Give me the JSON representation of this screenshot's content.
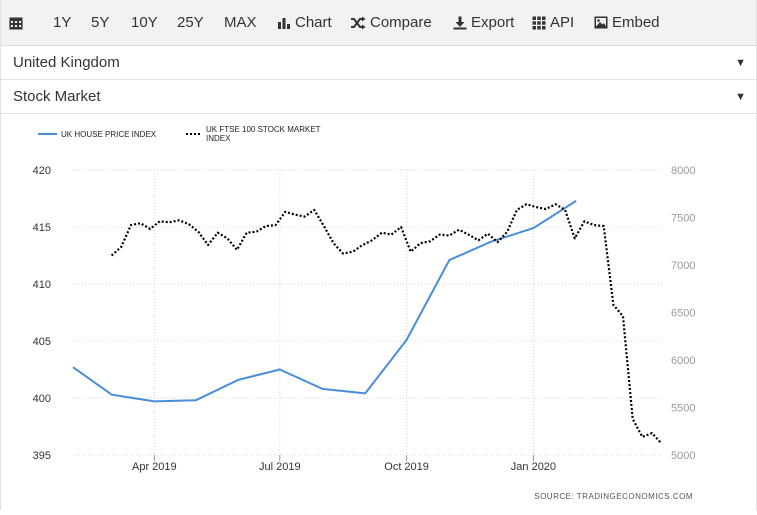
{
  "toolbar": {
    "items": [
      {
        "label": ""
      },
      {
        "label": "1Y"
      },
      {
        "label": "5Y"
      },
      {
        "label": "10Y"
      },
      {
        "label": "25Y"
      },
      {
        "label": "MAX"
      },
      {
        "label": "Chart"
      },
      {
        "label": "Compare"
      },
      {
        "label": "Export"
      },
      {
        "label": "API"
      },
      {
        "label": "Embed"
      }
    ]
  },
  "selectors": {
    "country": "United Kingdom",
    "indicator": "Stock Market"
  },
  "source": "SOURCE: TRADINGECONOMICS.COM",
  "colors": {
    "house": "#4a8ddc",
    "ftse": "#000000"
  },
  "chart_data": {
    "type": "line",
    "legend_placement": "top-left",
    "grid": true,
    "x_ticks": [
      "Apr 2019",
      "Jul 2019",
      "Oct 2019",
      "Jan 2020"
    ],
    "y_left": {
      "range": [
        395,
        420
      ],
      "ticks": [
        "420",
        "415",
        "410",
        "405",
        "400",
        "395"
      ]
    },
    "y_right": {
      "range": [
        5000,
        8000
      ],
      "ticks": [
        "8000",
        "7500",
        "7000",
        "6500",
        "6000",
        "5500",
        "5000"
      ]
    },
    "series": [
      {
        "name": "UK HOUSE PRICE INDEX",
        "axis": "left",
        "style": "solid",
        "x": [
          "2019-02",
          "2019-03",
          "2019-04",
          "2019-05",
          "2019-06",
          "2019-07",
          "2019-08",
          "2019-09",
          "2019-10",
          "2019-11",
          "2019-12",
          "2020-01",
          "2020-02"
        ],
        "values": [
          402.7,
          400.3,
          399.7,
          399.8,
          401.6,
          402.5,
          400.8,
          400.4,
          405.1,
          412.1,
          413.7,
          414.9,
          417.3
        ]
      },
      {
        "name": "UK FTSE 100 STOCK MARKET INDEX",
        "axis": "right",
        "style": "dotted",
        "x": [
          "2019-03-01",
          "2019-03-08",
          "2019-03-15",
          "2019-03-22",
          "2019-03-29",
          "2019-04-05",
          "2019-04-12",
          "2019-04-19",
          "2019-04-26",
          "2019-05-03",
          "2019-05-10",
          "2019-05-17",
          "2019-05-24",
          "2019-05-31",
          "2019-06-07",
          "2019-06-14",
          "2019-06-21",
          "2019-06-28",
          "2019-07-05",
          "2019-07-12",
          "2019-07-19",
          "2019-07-26",
          "2019-08-02",
          "2019-08-09",
          "2019-08-16",
          "2019-08-23",
          "2019-08-30",
          "2019-09-06",
          "2019-09-13",
          "2019-09-20",
          "2019-09-27",
          "2019-10-04",
          "2019-10-11",
          "2019-10-18",
          "2019-10-25",
          "2019-11-01",
          "2019-11-08",
          "2019-11-15",
          "2019-11-22",
          "2019-11-29",
          "2019-12-06",
          "2019-12-13",
          "2019-12-20",
          "2019-12-27",
          "2020-01-03",
          "2020-01-10",
          "2020-01-17",
          "2020-01-24",
          "2020-01-31",
          "2020-02-07",
          "2020-02-14",
          "2020-02-21",
          "2020-02-28",
          "2020-03-06",
          "2020-03-13",
          "2020-03-20",
          "2020-03-27",
          "2020-04-03"
        ],
        "values": [
          7100,
          7190,
          7420,
          7440,
          7380,
          7460,
          7450,
          7470,
          7430,
          7350,
          7210,
          7340,
          7280,
          7160,
          7340,
          7350,
          7410,
          7420,
          7560,
          7530,
          7510,
          7580,
          7410,
          7230,
          7120,
          7140,
          7210,
          7260,
          7340,
          7320,
          7400,
          7140,
          7230,
          7250,
          7320,
          7310,
          7370,
          7320,
          7260,
          7330,
          7240,
          7350,
          7580,
          7640,
          7610,
          7590,
          7640,
          7580,
          7280,
          7460,
          7420,
          7410,
          6580,
          6460,
          5380,
          5190,
          5230,
          5120
        ]
      }
    ]
  }
}
